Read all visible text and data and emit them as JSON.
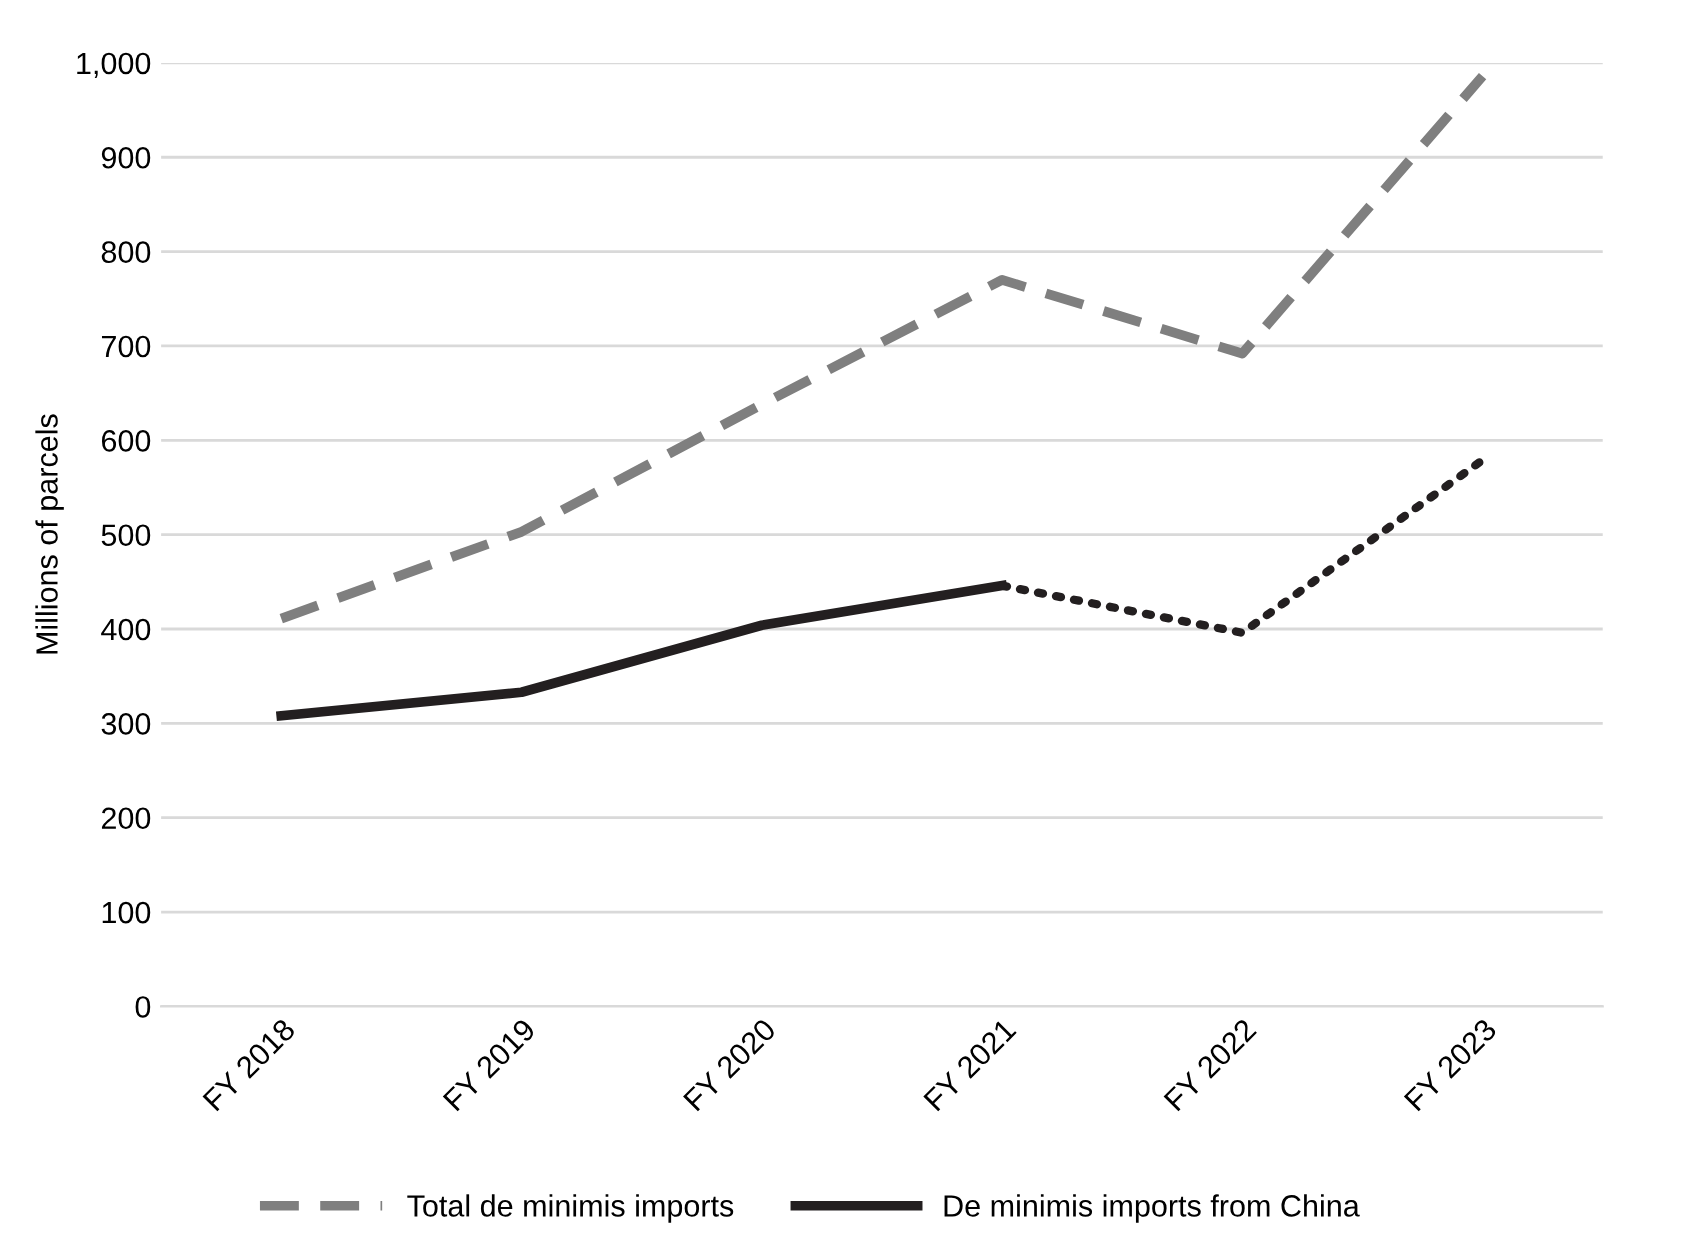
{
  "chart_data": {
    "type": "line",
    "ylabel": "Millions of parcels",
    "categories": [
      "FY 2018",
      "FY 2019",
      "FY 2020",
      "FY 2021",
      "FY 2022",
      "FY 2023"
    ],
    "series": [
      {
        "name": "Total de minimis imports",
        "color": "#7f7f7f",
        "line_style": "dashed",
        "values": [
          411,
          503,
          638,
          770,
          692,
          986
        ]
      },
      {
        "name": "De minimis imports from China",
        "color": "#231f20",
        "line_style": "solid",
        "values": [
          308,
          333,
          404,
          446,
          null,
          null
        ]
      },
      {
        "color": "#231f20",
        "line_style": "dotted",
        "values": [
          null,
          null,
          null,
          446,
          396,
          579
        ]
      }
    ],
    "ylim": [
      0,
      1000
    ],
    "yticks": [
      {
        "value": 0,
        "label": "0"
      },
      {
        "value": 100,
        "label": "100"
      },
      {
        "value": 200,
        "label": "200"
      },
      {
        "value": 300,
        "label": "300"
      },
      {
        "value": 400,
        "label": "400"
      },
      {
        "value": 500,
        "label": "500"
      },
      {
        "value": 600,
        "label": "600"
      },
      {
        "value": 700,
        "label": "700"
      },
      {
        "value": 800,
        "label": "800"
      },
      {
        "value": 900,
        "label": "900"
      },
      {
        "value": 1000,
        "label": "1,000"
      }
    ],
    "grid": "y",
    "legend": "bottom",
    "marker": "none"
  }
}
